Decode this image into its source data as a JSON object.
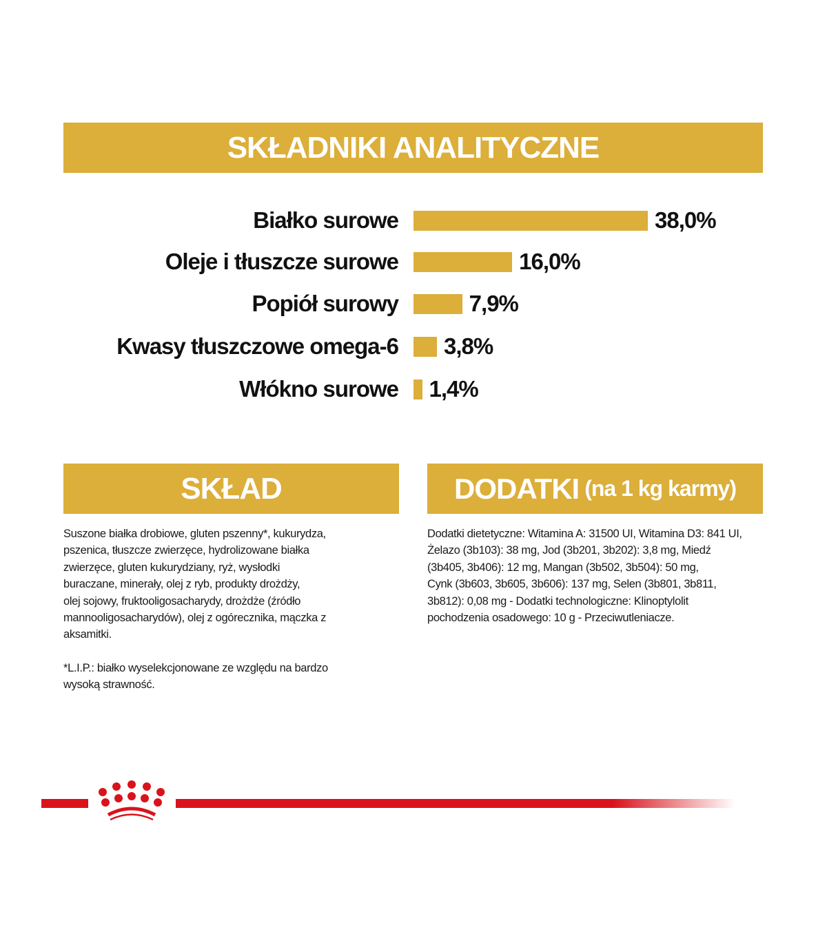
{
  "header": {
    "title": "SKŁADNIKI ANALITYCZNE"
  },
  "chart_data": {
    "type": "bar",
    "orientation": "horizontal",
    "title": "SKŁADNIKI ANALITYCZNE",
    "categories": [
      "Białko surowe",
      "Oleje i tłuszcze surowe",
      "Popiół surowy",
      "Kwasy tłuszczowe omega-6",
      "Włókno surowe"
    ],
    "values": [
      38.0,
      16.0,
      7.9,
      3.8,
      1.4
    ],
    "value_labels": [
      "38,0%",
      "16,0%",
      "7,9%",
      "3,8%",
      "1,4%"
    ],
    "unit": "%",
    "bar_color": "#dcae3a",
    "grid": false
  },
  "sklad": {
    "title": "SKŁAD",
    "lines": [
      "Suszone białka drobiowe, gluten pszenny*, kukurydza,",
      "pszenica, tłuszcze zwierzęce, hydrolizowane białka",
      "zwierzęce, gluten kukurydziany, ryż, wysłodki",
      "buraczane, minerały, olej z ryb, produkty drożdży,",
      "olej sojowy, fruktooligosacharydy, drożdże (źródło",
      "mannooligosacharydów), olej z ogórecznika, mączka z",
      "aksamitki."
    ],
    "note_lines": [
      "*L.I.P.: białko wyselekcjonowane ze względu na bardzo",
      "wysoką strawność."
    ]
  },
  "dodatki": {
    "title": "DODATKI",
    "subtitle": "(na 1 kg karmy)",
    "lines": [
      "Dodatki dietetyczne: Witamina A: 31500 UI, Witamina D3: 841 UI,",
      "Żelazo (3b103): 38 mg, Jod (3b201, 3b202): 3,8 mg, Miedź",
      "(3b405, 3b406): 12 mg, Mangan (3b502, 3b504): 50 mg,",
      "Cynk (3b603, 3b605, 3b606): 137 mg, Selen (3b801, 3b811,",
      "3b812): 0,08 mg - Dodatki technologiczne: Klinoptylolit",
      "pochodzenia osadowego: 10 g - Przeciwutleniacze."
    ]
  },
  "footer": {
    "logo": "royal-canin-crown-logo",
    "accent_color": "#d9131b"
  }
}
